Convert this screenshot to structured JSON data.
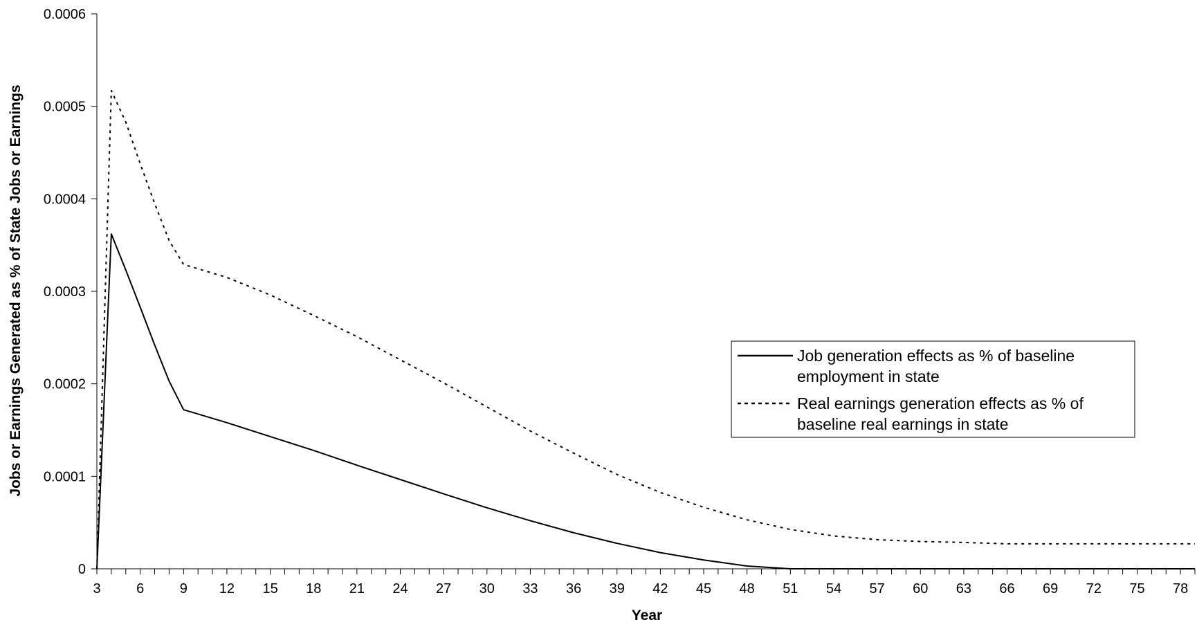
{
  "chart_data": {
    "type": "line",
    "title": "",
    "xlabel": "Year",
    "ylabel": "Jobs or Earnings Generated as % of State Jobs or Earnings",
    "xlim": [
      3,
      79
    ],
    "ylim": [
      0,
      0.0006
    ],
    "x_ticks": [
      3,
      6,
      9,
      12,
      15,
      18,
      21,
      24,
      27,
      30,
      33,
      36,
      39,
      42,
      45,
      48,
      51,
      54,
      57,
      60,
      63,
      66,
      69,
      72,
      75,
      78
    ],
    "y_ticks": [
      0,
      0.0001,
      0.0002,
      0.0003,
      0.0004,
      0.0005,
      0.0006
    ],
    "y_tick_labels": [
      "0",
      "0.0001",
      "0.0002",
      "0.0003",
      "0.0004",
      "0.0005",
      "0.0006"
    ],
    "grid": false,
    "legend_position": "right",
    "series": [
      {
        "name": "Job generation effects as % of baseline employment in state",
        "legend_lines": [
          "Job generation effects as % of baseline",
          "employment in state"
        ],
        "style": "solid",
        "color": "#000000",
        "x": [
          3,
          4,
          5,
          6,
          7,
          8,
          9,
          12,
          15,
          18,
          21,
          24,
          27,
          30,
          33,
          36,
          39,
          42,
          45,
          48,
          51,
          54,
          57,
          60,
          63,
          66,
          69,
          72,
          75,
          78,
          79
        ],
        "values": [
          0,
          0.000362,
          0.000323,
          0.000283,
          0.000242,
          0.000203,
          0.000172,
          0.000158,
          0.000143,
          0.000128,
          0.000112,
          9.65e-05,
          8.1e-05,
          6.6e-05,
          5.2e-05,
          3.9e-05,
          2.75e-05,
          1.75e-05,
          9.5e-06,
          3e-06,
          -1.5e-06,
          -4e-06,
          -5.5e-06,
          -6e-06,
          -6e-06,
          -6.3e-06,
          -6.5e-06,
          -6.5e-06,
          -6.5e-06,
          -6.5e-06,
          -6.5e-06
        ],
        "offset_note": ""
      },
      {
        "name": "Real earnings generation effects as % of baseline real earnings in state",
        "legend_lines": [
          "Real earnings generation effects as % of",
          "baseline real earnings in state"
        ],
        "style": "dotted",
        "color": "#000000",
        "x": [
          3,
          4,
          5,
          6,
          7,
          8,
          9,
          12,
          15,
          18,
          21,
          24,
          27,
          30,
          33,
          36,
          39,
          42,
          45,
          48,
          51,
          54,
          57,
          60,
          63,
          66,
          69,
          72,
          75,
          78,
          79
        ],
        "values": [
          0,
          0.000517,
          0.000483,
          0.000438,
          0.000395,
          0.000355,
          0.000329,
          0.000315,
          0.000296,
          0.000274,
          0.000251,
          0.000226,
          0.000201,
          0.000175,
          0.000149,
          0.000125,
          0.000102,
          8.25e-05,
          6.65e-05,
          5.3e-05,
          4.25e-05,
          3.55e-05,
          3.15e-05,
          2.95e-05,
          2.85e-05,
          2.7e-05,
          2.7e-05,
          2.7e-05,
          2.7e-05,
          2.7e-05,
          2.7e-05
        ]
      }
    ]
  }
}
